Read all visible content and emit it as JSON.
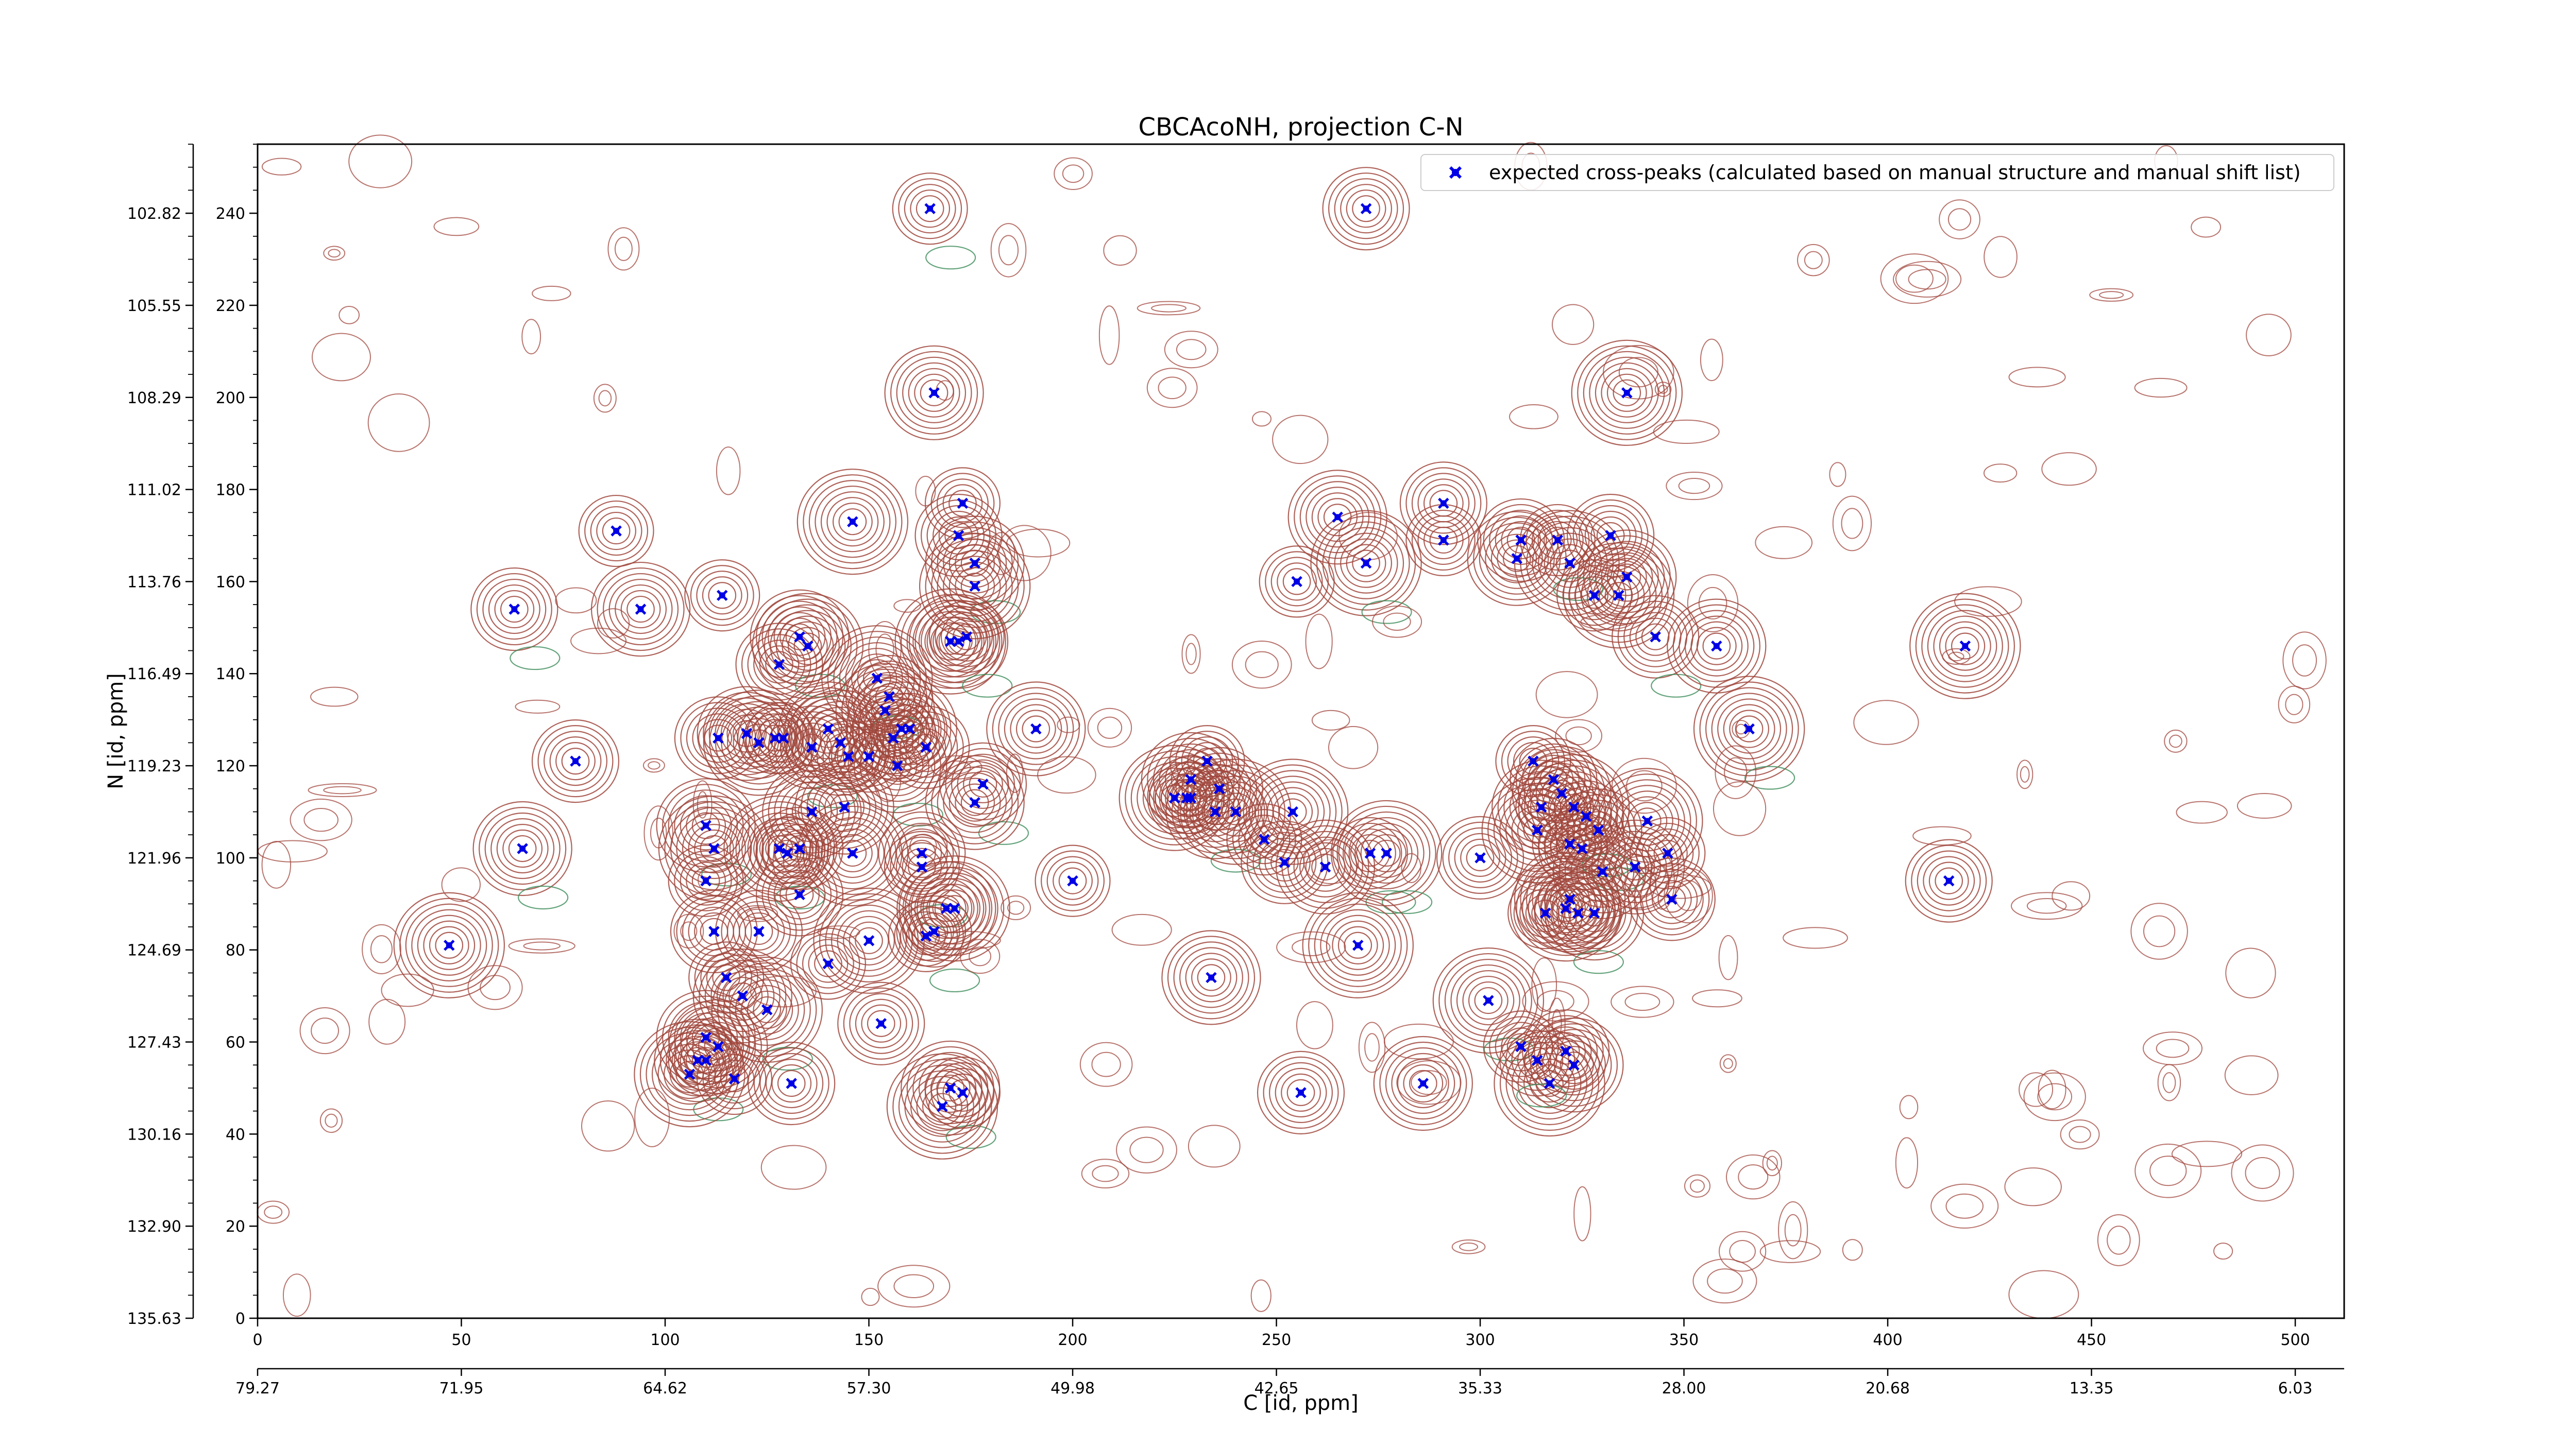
{
  "chart_data": {
    "type": "scatter",
    "title": "CBCAcoNH, projection C-N",
    "xlabel": "C [id, ppm]",
    "ylabel": "N [id, ppm]",
    "xlim": [
      0,
      512
    ],
    "ylim": [
      0,
      255
    ],
    "x_ticks": [
      0,
      50,
      100,
      150,
      200,
      250,
      300,
      350,
      400,
      450,
      500
    ],
    "x_ticks_ppm": [
      "79.27",
      "71.95",
      "64.62",
      "57.30",
      "49.98",
      "42.65",
      "35.33",
      "28.00",
      "20.68",
      "13.35",
      "6.03"
    ],
    "y_ticks": [
      0,
      20,
      40,
      60,
      80,
      100,
      120,
      140,
      160,
      180,
      200,
      220,
      240
    ],
    "y_ticks_ppm": [
      "135.63",
      "132.90",
      "130.16",
      "127.43",
      "124.69",
      "121.96",
      "119.23",
      "116.49",
      "113.76",
      "111.02",
      "108.29",
      "105.55",
      "102.82"
    ],
    "legend": {
      "label": "expected cross-peaks (calculated based on manual structure and manual shift list)",
      "placement": "top-right"
    },
    "colors": {
      "positive_contour": "#a0463c",
      "negative_contour": "#3c8c5a",
      "marker": "#0000e6"
    },
    "series": [
      {
        "name": "expected cross-peaks (calculated based on manual structure and manual shift list)",
        "x": [
          165,
          272,
          166,
          336,
          88,
          63,
          94,
          146,
          173,
          172,
          176,
          176,
          255,
          291,
          265,
          272,
          291,
          310,
          309,
          322,
          319,
          332,
          336,
          334,
          328,
          343,
          358,
          419,
          114,
          128,
          133,
          135,
          127,
          155,
          154,
          152,
          160,
          164,
          172,
          170,
          174,
          113,
          120,
          123,
          129,
          136,
          140,
          143,
          145,
          156,
          157,
          158,
          150,
          78,
          191,
          366,
          233,
          229,
          229,
          254,
          273,
          300,
          315,
          314,
          322,
          329,
          338,
          341,
          346,
          347,
          110,
          112,
          110,
          112,
          136,
          128,
          130,
          133,
          144,
          146,
          163,
          163,
          169,
          171,
          164,
          178,
          176,
          225,
          228,
          236,
          235,
          240,
          247,
          252,
          262,
          277,
          313,
          318,
          320,
          323,
          326,
          325,
          330,
          321,
          316,
          324,
          328,
          322,
          200,
          415,
          65,
          47,
          115,
          133,
          119,
          125,
          140,
          123,
          110,
          150,
          166,
          153,
          234,
          270,
          110,
          108,
          113,
          106,
          117,
          131,
          170,
          168,
          173,
          256,
          286,
          302,
          314,
          321,
          323,
          317,
          310
        ],
        "y": [
          241,
          241,
          201,
          201,
          171,
          154,
          154,
          173,
          177,
          170,
          164,
          159,
          160,
          177,
          174,
          164,
          169,
          169,
          165,
          164,
          169,
          170,
          161,
          157,
          157,
          148,
          146,
          146,
          157,
          142,
          148,
          146,
          126,
          135,
          132,
          139,
          128,
          124,
          147,
          147,
          148,
          126,
          127,
          125,
          126,
          124,
          128,
          125,
          122,
          126,
          120,
          128,
          122,
          121,
          128,
          128,
          121,
          113,
          117,
          110,
          101,
          100,
          111,
          106,
          103,
          106,
          98,
          108,
          101,
          91,
          107,
          102,
          95,
          84,
          110,
          102,
          101,
          102,
          111,
          101,
          98,
          101,
          89,
          89,
          83,
          116,
          112,
          113,
          113,
          115,
          110,
          110,
          104,
          99,
          98,
          101,
          121,
          117,
          114,
          111,
          109,
          102,
          97,
          89,
          88,
          88,
          88,
          91,
          95,
          95,
          102,
          81,
          74,
          92,
          70,
          67,
          77,
          84,
          61,
          82,
          84,
          64,
          74,
          81,
          56,
          56,
          59,
          53,
          52,
          51,
          50,
          46,
          49,
          49,
          51,
          69,
          56,
          58,
          55,
          51,
          59
        ]
      }
    ]
  }
}
